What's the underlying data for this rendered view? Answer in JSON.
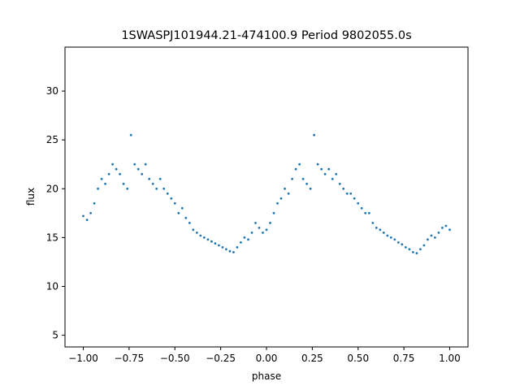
{
  "chart_data": {
    "type": "scatter",
    "title": "1SWASPJ101944.21-474100.9 Period 9802055.0s",
    "xlabel": "phase",
    "ylabel": "flux",
    "xlim": [
      -1.1,
      1.1
    ],
    "ylim": [
      3.8,
      34.5
    ],
    "xticks": [
      -1.0,
      -0.75,
      -0.5,
      -0.25,
      0.0,
      0.25,
      0.5,
      0.75,
      1.0
    ],
    "xtick_labels": [
      "−1.00",
      "−0.75",
      "−0.50",
      "−0.25",
      "0.00",
      "0.25",
      "0.50",
      "0.75",
      "1.00"
    ],
    "yticks": [
      5,
      10,
      15,
      20,
      25,
      30
    ],
    "ytick_labels": [
      "5",
      "10",
      "15",
      "20",
      "25",
      "30"
    ],
    "grid": false,
    "point_color": "#1f77b4",
    "series": [
      {
        "points": [
          [
            -1.0,
            17.2
          ],
          [
            -0.98,
            16.8
          ],
          [
            -0.96,
            17.5
          ],
          [
            -0.94,
            18.5
          ],
          [
            -0.92,
            20.0
          ],
          [
            -0.9,
            21.0
          ],
          [
            -0.88,
            20.5
          ],
          [
            -0.86,
            21.5
          ],
          [
            -0.84,
            22.5
          ],
          [
            -0.82,
            22.0
          ],
          [
            -0.8,
            21.5
          ],
          [
            -0.78,
            20.5
          ],
          [
            -0.76,
            20.0
          ],
          [
            -0.74,
            25.5
          ],
          [
            -0.72,
            22.5
          ],
          [
            -0.7,
            22.0
          ],
          [
            -0.68,
            21.5
          ],
          [
            -0.66,
            22.5
          ],
          [
            -0.64,
            21.0
          ],
          [
            -0.62,
            20.5
          ],
          [
            -0.6,
            20.0
          ],
          [
            -0.58,
            21.0
          ],
          [
            -0.56,
            20.0
          ],
          [
            -0.54,
            19.5
          ],
          [
            -0.52,
            19.0
          ],
          [
            -0.5,
            18.5
          ],
          [
            -0.48,
            17.5
          ],
          [
            -0.46,
            18.0
          ],
          [
            -0.44,
            17.0
          ],
          [
            -0.42,
            16.5
          ],
          [
            -0.4,
            15.8
          ],
          [
            -0.38,
            15.5
          ],
          [
            -0.36,
            15.2
          ],
          [
            -0.34,
            15.0
          ],
          [
            -0.32,
            14.8
          ],
          [
            -0.3,
            14.6
          ],
          [
            -0.28,
            14.4
          ],
          [
            -0.26,
            14.2
          ],
          [
            -0.24,
            14.0
          ],
          [
            -0.22,
            13.8
          ],
          [
            -0.2,
            13.6
          ],
          [
            -0.18,
            13.5
          ],
          [
            -0.16,
            14.0
          ],
          [
            -0.14,
            14.5
          ],
          [
            -0.12,
            15.0
          ],
          [
            -0.1,
            14.8
          ],
          [
            -0.08,
            15.5
          ],
          [
            -0.06,
            16.5
          ],
          [
            -0.04,
            16.0
          ],
          [
            -0.02,
            15.5
          ],
          [
            0.0,
            15.8
          ],
          [
            0.02,
            16.5
          ],
          [
            0.04,
            17.5
          ],
          [
            0.06,
            18.5
          ],
          [
            0.08,
            19.0
          ],
          [
            0.1,
            20.0
          ],
          [
            0.12,
            19.5
          ],
          [
            0.14,
            21.0
          ],
          [
            0.16,
            22.0
          ],
          [
            0.18,
            22.5
          ],
          [
            0.2,
            21.0
          ],
          [
            0.22,
            20.5
          ],
          [
            0.24,
            20.0
          ],
          [
            0.26,
            25.5
          ],
          [
            0.28,
            22.5
          ],
          [
            0.3,
            22.0
          ],
          [
            0.32,
            21.5
          ],
          [
            0.34,
            22.0
          ],
          [
            0.36,
            21.0
          ],
          [
            0.38,
            21.5
          ],
          [
            0.4,
            20.5
          ],
          [
            0.42,
            20.0
          ],
          [
            0.44,
            19.5
          ],
          [
            0.46,
            19.5
          ],
          [
            0.48,
            19.0
          ],
          [
            0.5,
            18.5
          ],
          [
            0.52,
            18.0
          ],
          [
            0.54,
            17.5
          ],
          [
            0.56,
            17.5
          ],
          [
            0.58,
            16.5
          ],
          [
            0.6,
            16.0
          ],
          [
            0.62,
            15.8
          ],
          [
            0.64,
            15.5
          ],
          [
            0.66,
            15.2
          ],
          [
            0.68,
            15.0
          ],
          [
            0.7,
            14.8
          ],
          [
            0.72,
            14.5
          ],
          [
            0.74,
            14.3
          ],
          [
            0.76,
            14.0
          ],
          [
            0.78,
            13.8
          ],
          [
            0.8,
            13.5
          ],
          [
            0.82,
            13.4
          ],
          [
            0.84,
            13.8
          ],
          [
            0.86,
            14.2
          ],
          [
            0.88,
            14.8
          ],
          [
            0.9,
            15.2
          ],
          [
            0.92,
            15.0
          ],
          [
            0.94,
            15.5
          ],
          [
            0.96,
            16.0
          ],
          [
            0.98,
            16.2
          ],
          [
            1.0,
            15.8
          ]
        ]
      }
    ]
  }
}
